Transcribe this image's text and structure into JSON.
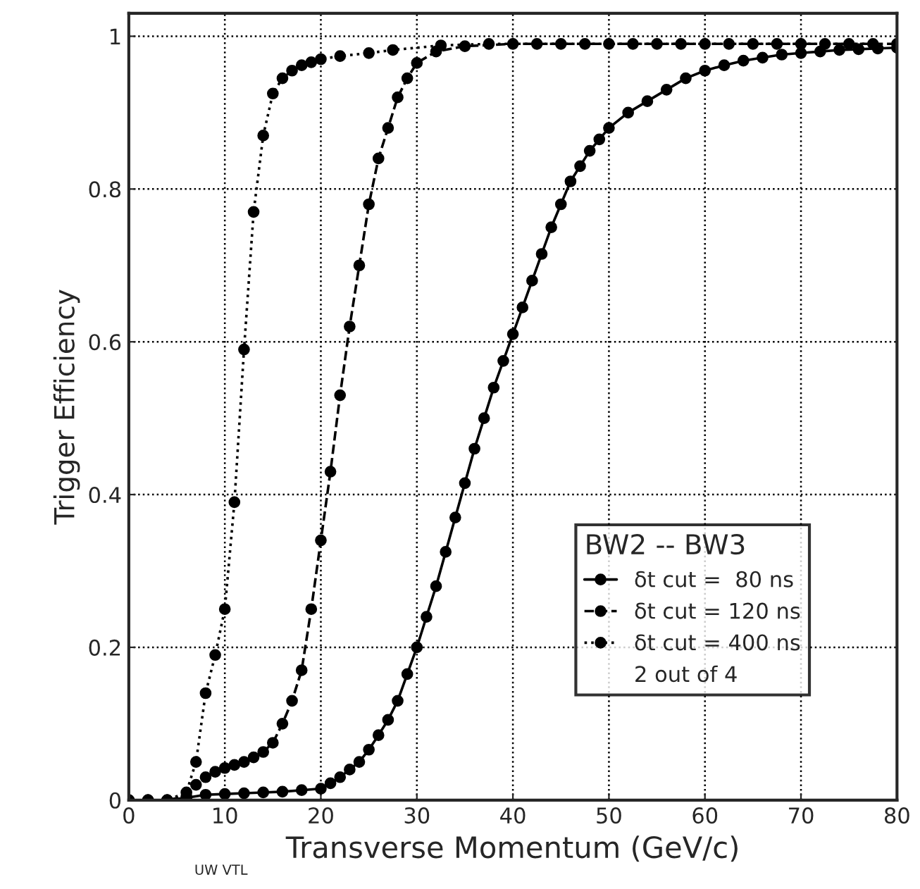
{
  "chart_data": {
    "type": "line",
    "xlabel": "Transverse Momentum (GeV/c)",
    "ylabel": "Trigger Efficiency",
    "legend_title": "BW2 -- BW3",
    "annotations": [
      "2 out of 4",
      "UW VTL"
    ],
    "xlim": [
      0,
      80
    ],
    "xticks": [
      0,
      10,
      20,
      30,
      40,
      50,
      60,
      70,
      80
    ],
    "ylim": [
      0,
      1.03
    ],
    "yticks": [
      0,
      0.2,
      0.4,
      0.6,
      0.8,
      1
    ],
    "grid": true,
    "legend": "bottom right",
    "marker": "circle",
    "series": [
      {
        "name": "δt cut =  80 ns",
        "color": "#000000",
        "line_style": "solid",
        "x": [
          0,
          2,
          4,
          6,
          8,
          10,
          12,
          14,
          16,
          18,
          20,
          21,
          22,
          23,
          24,
          25,
          26,
          27,
          28,
          29,
          30,
          31,
          32,
          33,
          34,
          35,
          36,
          37,
          38,
          39,
          40,
          41,
          42,
          43,
          44,
          45,
          46,
          47,
          48,
          49,
          50,
          52,
          54,
          56,
          58,
          60,
          62,
          64,
          66,
          68,
          70,
          72,
          74,
          76,
          78,
          80
        ],
        "values": [
          0,
          0,
          0,
          0.003,
          0.007,
          0.008,
          0.009,
          0.01,
          0.011,
          0.013,
          0.015,
          0.022,
          0.03,
          0.04,
          0.05,
          0.066,
          0.085,
          0.105,
          0.13,
          0.165,
          0.2,
          0.24,
          0.28,
          0.325,
          0.37,
          0.415,
          0.46,
          0.5,
          0.54,
          0.575,
          0.61,
          0.645,
          0.68,
          0.715,
          0.75,
          0.78,
          0.81,
          0.83,
          0.85,
          0.865,
          0.88,
          0.9,
          0.915,
          0.93,
          0.945,
          0.955,
          0.962,
          0.968,
          0.972,
          0.976,
          0.978,
          0.98,
          0.982,
          0.983,
          0.984,
          0.985
        ]
      },
      {
        "name": "δt cut = 120 ns",
        "color": "#000000",
        "line_style": "dashed",
        "x": [
          0,
          2,
          4,
          6,
          7,
          8,
          9,
          10,
          11,
          12,
          13,
          14,
          15,
          16,
          17,
          18,
          19,
          20,
          21,
          22,
          23,
          24,
          25,
          26,
          27,
          28,
          29,
          30,
          32,
          35,
          40,
          45,
          50,
          55,
          60,
          65,
          70,
          75,
          80
        ],
        "values": [
          0,
          0,
          0,
          0.005,
          0.02,
          0.03,
          0.037,
          0.042,
          0.046,
          0.05,
          0.056,
          0.063,
          0.075,
          0.1,
          0.13,
          0.17,
          0.25,
          0.34,
          0.43,
          0.53,
          0.62,
          0.7,
          0.78,
          0.84,
          0.88,
          0.92,
          0.945,
          0.965,
          0.98,
          0.987,
          0.99,
          0.99,
          0.99,
          0.99,
          0.99,
          0.99,
          0.99,
          0.99,
          0.99
        ]
      },
      {
        "name": "δt cut = 400 ns",
        "color": "#000000",
        "line_style": "dotted",
        "x": [
          0,
          2,
          4,
          6,
          7,
          8,
          9,
          10,
          11,
          12,
          13,
          14,
          15,
          16,
          17,
          18,
          19,
          20,
          22,
          25,
          27.5,
          32.5,
          37.5,
          42.5,
          47.5,
          52.5,
          57.5,
          62.5,
          67.5,
          72.5,
          77.5
        ],
        "values": [
          0,
          0,
          0,
          0.01,
          0.05,
          0.14,
          0.19,
          0.25,
          0.39,
          0.59,
          0.77,
          0.87,
          0.925,
          0.945,
          0.955,
          0.962,
          0.966,
          0.97,
          0.974,
          0.978,
          0.982,
          0.988,
          0.99,
          0.99,
          0.99,
          0.99,
          0.99,
          0.99,
          0.99,
          0.99,
          0.99
        ]
      }
    ]
  }
}
